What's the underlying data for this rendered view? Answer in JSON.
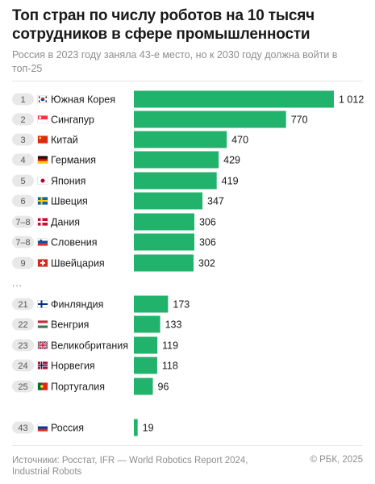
{
  "header": {
    "title": "Топ стран по числу роботов на 10 тысяч сотрудников в сфере промышленности",
    "subtitle": "Россия в 2023 году заняла 43-е место, но к 2030 году должна войти в топ-25"
  },
  "chart_data": {
    "type": "bar",
    "orientation": "horizontal",
    "bar_color": "#21b26b",
    "badge_color": "#e8e8e8",
    "gap_marker": "...",
    "rows": [
      {
        "rank": "1",
        "country": "Южная Корея",
        "value": 1012,
        "value_label": "1 012",
        "flag": "flag-south-korea"
      },
      {
        "rank": "2",
        "country": "Сингапур",
        "value": 770,
        "value_label": "770",
        "flag": "flag-singapore"
      },
      {
        "rank": "3",
        "country": "Китай",
        "value": 470,
        "value_label": "470",
        "flag": "flag-china"
      },
      {
        "rank": "4",
        "country": "Германия",
        "value": 429,
        "value_label": "429",
        "flag": "flag-germany"
      },
      {
        "rank": "5",
        "country": "Япония",
        "value": 419,
        "value_label": "419",
        "flag": "flag-japan"
      },
      {
        "rank": "6",
        "country": "Швеция",
        "value": 347,
        "value_label": "347",
        "flag": "flag-sweden"
      },
      {
        "rank": "7–8",
        "country": "Дания",
        "value": 306,
        "value_label": "306",
        "flag": "flag-denmark"
      },
      {
        "rank": "7–8",
        "country": "Словения",
        "value": 306,
        "value_label": "306",
        "flag": "flag-slovenia"
      },
      {
        "rank": "9",
        "country": "Швейцария",
        "value": 302,
        "value_label": "302",
        "flag": "flag-switzerland"
      },
      {
        "rank": "21",
        "country": "Финляндия",
        "value": 173,
        "value_label": "173",
        "flag": "flag-finland"
      },
      {
        "rank": "22",
        "country": "Венгрия",
        "value": 133,
        "value_label": "133",
        "flag": "flag-hungary"
      },
      {
        "rank": "23",
        "country": "Великобритания",
        "value": 119,
        "value_label": "119",
        "flag": "flag-uk"
      },
      {
        "rank": "24",
        "country": "Норвегия",
        "value": 118,
        "value_label": "118",
        "flag": "flag-norway"
      },
      {
        "rank": "25",
        "country": "Португалия",
        "value": 96,
        "value_label": "96",
        "flag": "flag-portugal"
      },
      {
        "rank": "43",
        "country": "Россия",
        "value": 19,
        "value_label": "19",
        "flag": "flag-russia"
      }
    ]
  },
  "footer": {
    "sources": "Источники: Росстат, IFR — World Robotics Report 2024, Industrial Robots",
    "copyright": "© РБК, 2025"
  }
}
